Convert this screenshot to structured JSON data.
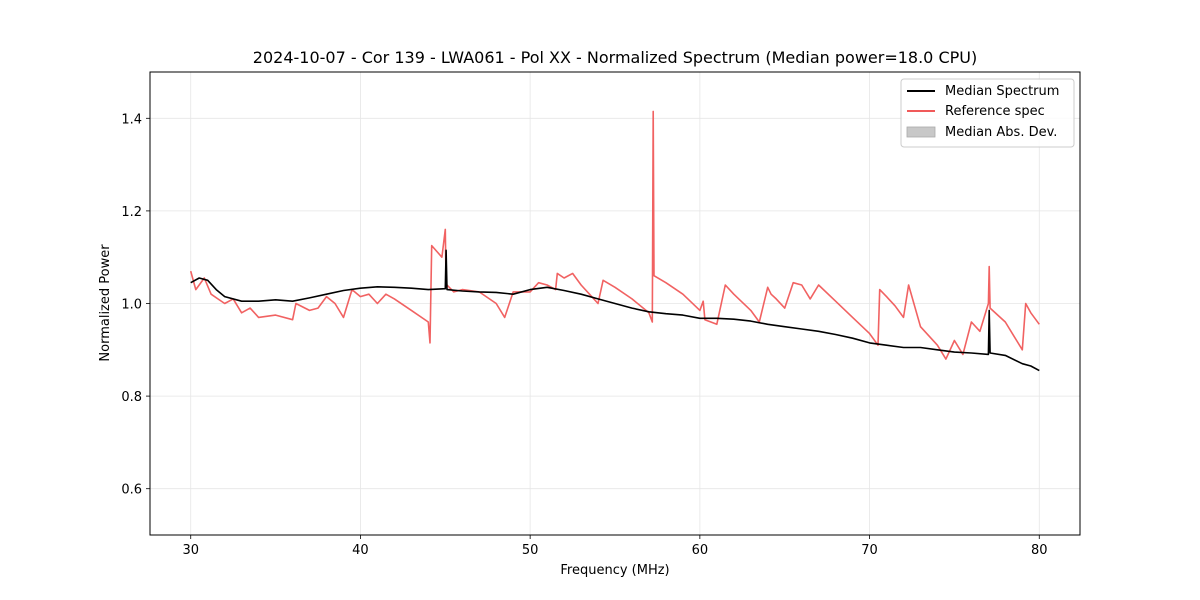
{
  "chart_data": {
    "type": "line",
    "title": "2024-10-07 - Cor 139 - LWA061 - Pol XX - Normalized Spectrum (Median power=18.0 CPU)",
    "xlabel": "Frequency (MHz)",
    "ylabel": "Normalized Power",
    "xlim": [
      27.6,
      82.4
    ],
    "ylim": [
      0.5,
      1.5
    ],
    "xticks": [
      30,
      40,
      50,
      60,
      70,
      80
    ],
    "yticks": [
      0.6,
      0.8,
      1.0,
      1.2,
      1.4
    ],
    "xtick_labels": [
      "30",
      "40",
      "50",
      "60",
      "70",
      "80"
    ],
    "ytick_labels": [
      "0.6",
      "0.8",
      "1.0",
      "1.2",
      "1.4"
    ],
    "grid": true,
    "legend_position": "top-right",
    "legend": [
      {
        "label": "Median Spectrum",
        "kind": "line",
        "color": "#000000"
      },
      {
        "label": "Reference spec",
        "kind": "line",
        "color": "#f05a5a"
      },
      {
        "label": "Median Abs. Dev.",
        "kind": "patch",
        "color": "#c8c8c8"
      }
    ],
    "series": [
      {
        "name": "Median Spectrum",
        "color": "#000000",
        "x": [
          30,
          30.5,
          31,
          31.5,
          32,
          33,
          34,
          35,
          36,
          37,
          38,
          39,
          40,
          41,
          42,
          43,
          44,
          45,
          45.05,
          45.1,
          46,
          47,
          48,
          49,
          50,
          51,
          52,
          53,
          54,
          55,
          56,
          57,
          58,
          59,
          60,
          61,
          62,
          63,
          64,
          65,
          66,
          67,
          68,
          69,
          70,
          71,
          72,
          73,
          74,
          75,
          76,
          77,
          77.05,
          77.1,
          78,
          79,
          79.5,
          80
        ],
        "y": [
          1.045,
          1.055,
          1.05,
          1.03,
          1.015,
          1.005,
          1.005,
          1.008,
          1.005,
          1.012,
          1.02,
          1.028,
          1.033,
          1.036,
          1.035,
          1.033,
          1.03,
          1.032,
          1.115,
          1.03,
          1.027,
          1.025,
          1.024,
          1.02,
          1.03,
          1.035,
          1.028,
          1.02,
          1.01,
          1.0,
          0.99,
          0.982,
          0.978,
          0.975,
          0.968,
          0.968,
          0.966,
          0.962,
          0.955,
          0.95,
          0.945,
          0.94,
          0.933,
          0.925,
          0.915,
          0.91,
          0.905,
          0.905,
          0.9,
          0.895,
          0.893,
          0.89,
          0.985,
          0.893,
          0.888,
          0.87,
          0.865,
          0.855
        ]
      },
      {
        "name": "Reference spec",
        "color": "#f05a5a",
        "x": [
          30,
          30.3,
          30.8,
          31.2,
          31.6,
          32,
          32.5,
          33,
          33.5,
          34,
          35,
          36,
          36.2,
          37,
          37.5,
          38,
          38.5,
          39,
          39.5,
          40,
          40.5,
          41,
          41.5,
          42,
          43,
          44,
          44.1,
          44.2,
          44.8,
          45,
          45.05,
          45.1,
          45.5,
          46,
          47,
          48,
          48.5,
          49,
          50,
          50.5,
          51,
          51.5,
          51.6,
          52,
          52.5,
          53,
          53.5,
          54,
          54.3,
          55,
          56,
          57,
          57.2,
          57.25,
          57.3,
          58,
          59,
          60,
          60.2,
          60.3,
          61,
          61.5,
          62,
          63,
          63.5,
          64,
          64.2,
          64.5,
          65,
          65.5,
          66,
          66.5,
          67,
          68,
          69,
          70,
          70.5,
          70.6,
          71,
          71.5,
          72,
          72.3,
          73,
          74,
          74.5,
          75,
          75.5,
          76,
          76.5,
          77,
          77.05,
          77.1,
          78,
          78.5,
          79,
          79.2,
          79.5,
          80
        ],
        "y": [
          1.07,
          1.03,
          1.055,
          1.02,
          1.01,
          1.0,
          1.01,
          0.98,
          0.99,
          0.97,
          0.975,
          0.965,
          1.0,
          0.985,
          0.99,
          1.015,
          1.0,
          0.97,
          1.03,
          1.015,
          1.02,
          1.0,
          1.02,
          1.01,
          0.985,
          0.96,
          0.915,
          1.125,
          1.1,
          1.16,
          1.035,
          1.04,
          1.025,
          1.03,
          1.025,
          1.0,
          0.97,
          1.025,
          1.025,
          1.045,
          1.04,
          1.03,
          1.065,
          1.055,
          1.065,
          1.04,
          1.02,
          1.0,
          1.05,
          1.035,
          1.01,
          0.98,
          0.96,
          1.415,
          1.06,
          1.045,
          1.02,
          0.985,
          1.005,
          0.965,
          0.955,
          1.04,
          1.02,
          0.985,
          0.96,
          1.035,
          1.02,
          1.01,
          0.99,
          1.045,
          1.04,
          1.01,
          1.04,
          1.005,
          0.97,
          0.935,
          0.91,
          1.03,
          1.015,
          0.995,
          0.97,
          1.04,
          0.95,
          0.91,
          0.88,
          0.92,
          0.89,
          0.96,
          0.94,
          1.0,
          1.08,
          0.99,
          0.96,
          0.93,
          0.9,
          1.0,
          0.98,
          0.955
        ]
      }
    ]
  }
}
